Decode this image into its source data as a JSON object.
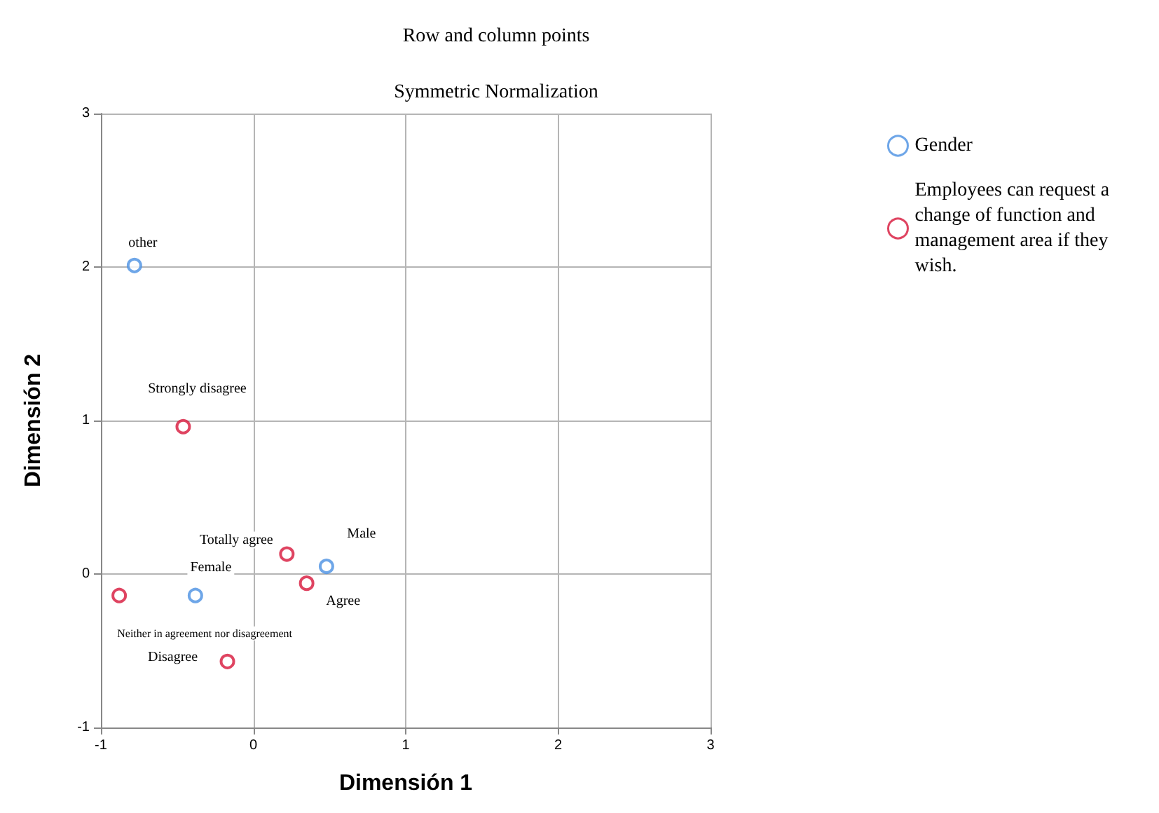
{
  "chart_data": {
    "type": "scatter",
    "title": "Row and column points",
    "subtitle": "Symmetric Normalization",
    "xlabel": "Dimensión 1",
    "ylabel": "Dimensión 2",
    "series": [
      {
        "name": "Gender",
        "color": "#4a90e2",
        "x": [
          -0.78,
          -0.38,
          0.48
        ],
        "values": [
          2.01,
          -0.14,
          0.05
        ]
      },
      {
        "name": "Employees can request a change of function and management area if they wish.",
        "color": "#d7153a",
        "x": [
          -0.46,
          0.22,
          0.35,
          -0.88,
          -0.17
        ],
        "values": [
          0.96,
          0.13,
          -0.06,
          -0.14,
          -0.57
        ]
      }
    ],
    "annotations": [
      {
        "text": "other",
        "x": -0.78,
        "y": 2.01
      },
      {
        "text": "Female",
        "x": -0.38,
        "y": -0.14
      },
      {
        "text": "Male",
        "x": 0.48,
        "y": 0.05
      },
      {
        "text": "Strongly disagree",
        "x": -0.46,
        "y": 0.96
      },
      {
        "text": "Totally agree",
        "x": 0.22,
        "y": 0.13
      },
      {
        "text": "Agree",
        "x": 0.35,
        "y": -0.06
      },
      {
        "text": "Neither in agreement nor disagreement",
        "x": -0.88,
        "y": -0.14
      },
      {
        "text": "Disagree",
        "x": -0.17,
        "y": -0.57
      }
    ],
    "xlim": [
      -1,
      3
    ],
    "xticks": [
      -1,
      0,
      1,
      2,
      3
    ],
    "ylim": [
      -1,
      3
    ],
    "yticks": [
      -1,
      0,
      1,
      2,
      3
    ],
    "grid": true,
    "legend": "top right",
    "marker": "circle"
  }
}
